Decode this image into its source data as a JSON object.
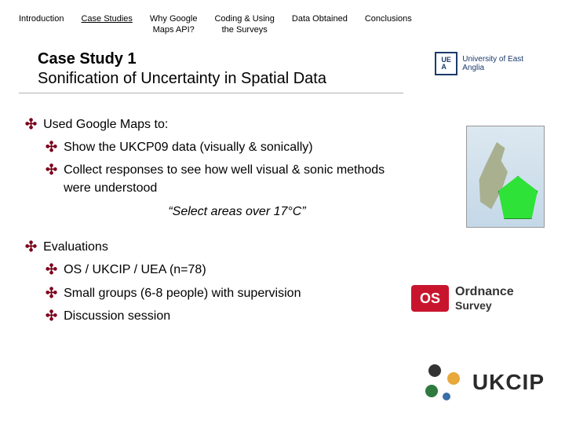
{
  "nav": {
    "items": [
      {
        "label": "Introduction",
        "active": false
      },
      {
        "label": "Case Studies",
        "active": true
      },
      {
        "label": "Why Google\nMaps API?",
        "active": false
      },
      {
        "label": "Coding & Using\nthe Surveys",
        "active": false
      },
      {
        "label": "Data Obtained",
        "active": false
      },
      {
        "label": "Conclusions",
        "active": false
      }
    ]
  },
  "title": {
    "num": "Case Study 1",
    "sub": "Sonification of Uncertainty in Spatial Data"
  },
  "section1": {
    "heading": "Used Google Maps to:",
    "items": [
      "Show the UKCP09 data (visually & sonically)",
      "Collect responses to see how well visual & sonic methods were understood"
    ],
    "quote": "“Select areas over 17°C”"
  },
  "section2": {
    "heading": "Evaluations",
    "items": [
      "OS / UKCIP / UEA (n=78)",
      "Small groups (6-8 people) with supervision",
      "Discussion session"
    ]
  },
  "logos": {
    "uea_abbrev": "UE\nA",
    "uea_full": "University of East Anglia",
    "os_badge": "OS",
    "os_line1": "Ordnance",
    "os_line2": "Survey",
    "ukcip": "UKCIP"
  },
  "colors": {
    "bullet": "#7a0019",
    "uea": "#1b3a6b",
    "os": "#c8152d",
    "map_highlight": "#2ee238"
  }
}
